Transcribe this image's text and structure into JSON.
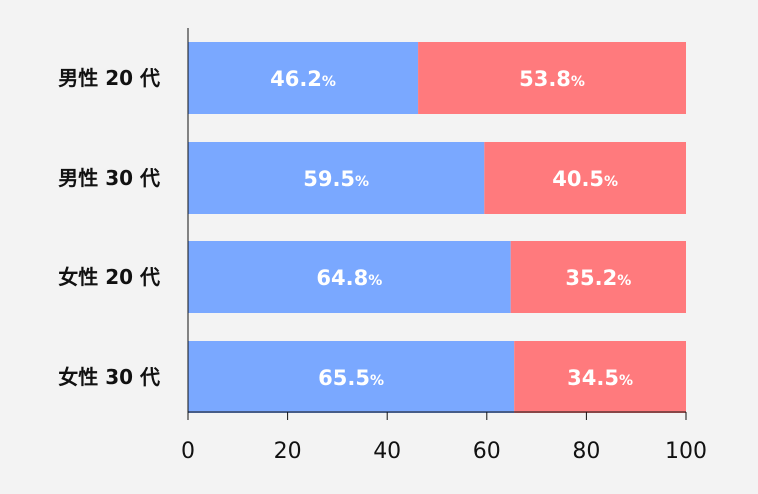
{
  "chart_data": {
    "type": "bar",
    "orientation": "horizontal",
    "stacked": true,
    "title": "",
    "xlabel": "",
    "ylabel": "",
    "categories": [
      "男性 20 代",
      "男性 30 代",
      "女性 20 代",
      "女性 30 代"
    ],
    "xlim": [
      0,
      100
    ],
    "xticks": [
      0,
      20,
      40,
      60,
      80,
      100
    ],
    "grid": false,
    "legend": "none",
    "value_unit": "%",
    "series": [
      {
        "values": [
          46.2,
          59.5,
          64.8,
          65.5
        ],
        "color": "#7aa8ff"
      },
      {
        "values": [
          53.8,
          40.5,
          35.2,
          34.5
        ],
        "color": "#ff7a7d"
      }
    ],
    "data_labels": [
      [
        "46.2",
        "59.5",
        "64.8",
        "65.5"
      ],
      [
        "53.8",
        "40.5",
        "35.2",
        "34.5"
      ]
    ]
  },
  "colors": {
    "background": "#f3f3f3",
    "axis": "#111111"
  }
}
